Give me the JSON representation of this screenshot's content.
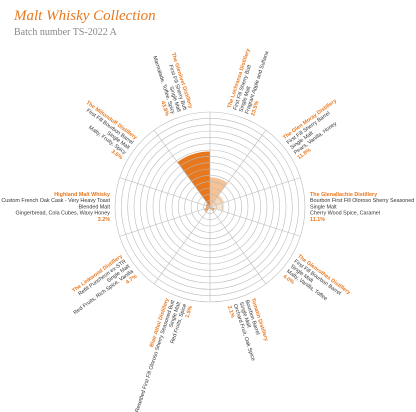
{
  "chart_data": {
    "type": "polar-bar",
    "title": "Malt Whisky Collection",
    "subtitle": "Batch number TS-2022 A",
    "rlim": [
      0,
      75
    ],
    "rticks": [
      5,
      10,
      15,
      20,
      25,
      30,
      35,
      40,
      45,
      50,
      55,
      60,
      65,
      70,
      75
    ],
    "segments": [
      {
        "name": "The Lochranza Distillery",
        "cask": "First Fill Sherry Butt",
        "style": "Single Malt",
        "notes": "Fragrant Apple and Sultana",
        "value": 23.5,
        "value_label": "23.5%",
        "color": "#f5c295"
      },
      {
        "name": "The Glen Moray Distillery",
        "cask": "First Fill Sherry Barrel",
        "style": "Single Malt",
        "notes": "Pears, Vanilla, Honey",
        "value": 11.8,
        "value_label": "11.8%",
        "color": "#f8d8ba"
      },
      {
        "name": "The Glenallachie Distillery",
        "cask": "Bourbon First Fill Oloroso Sherry Seasoned Butt",
        "style": "Single Malt",
        "notes": "Cherry Wood Spice, Caramel",
        "value": 11.1,
        "value_label": "11.1%",
        "color": "#fbe4cf"
      },
      {
        "name": "The Glenrothes Distillery",
        "cask": "First Fill Bourbon Barrel",
        "style": "Single Malt",
        "notes": "Malty, Vanilla, Toffee",
        "value": 4.0,
        "value_label": "4.0%",
        "color": "#f0a060"
      },
      {
        "name": "Tomatin Distillery",
        "cask": "Bourbon Barrel",
        "style": "Single Malt",
        "notes": "Orchard Fruit, Oak Spice",
        "value": 2.1,
        "value_label": "2.1%",
        "color": "#f0a060"
      },
      {
        "name": "Blair Athol Distillery",
        "cask": "Resettled First Fill Oloroso Sherry Seasoned Butt",
        "style": "Single Malt",
        "notes": "Red Fruits, Spice",
        "value": 1.5,
        "value_label": "1.5%",
        "color": "#f0a060"
      },
      {
        "name": "The Linkwood Distillery",
        "cask": "Refill Puncheon ex-STR",
        "style": "Single Malt",
        "notes": "Red Fruits, Rich Spice, Vanilla",
        "value": 4.7,
        "value_label": "4.7%",
        "color": "#f0a060"
      },
      {
        "name": "Highland Malt Whisky",
        "cask": "Custom French Oak Cask - Very Heavy Toast",
        "style": "Blended Malt",
        "notes": "Gingerbread, Cola Cubes, Waxy Honey",
        "value": 3.2,
        "value_label": "3.2%",
        "color": "#f0a060"
      },
      {
        "name": "The Miltonduff Distillery",
        "cask": "First Fill Bourbon Barrel",
        "style": "Single Malt",
        "notes": "Malty, Fruity, Spicy",
        "value": 3.6,
        "value_label": "3.6%",
        "color": "#f0a060"
      },
      {
        "name": "The Glenlivet Distillery",
        "cask": "First Fill Sherry Butt",
        "style": "Single Malt",
        "notes": "Marmalade, Toffee, Spicy",
        "value": 43.8,
        "value_label": "43.8%",
        "color": "#e8781e"
      }
    ]
  }
}
